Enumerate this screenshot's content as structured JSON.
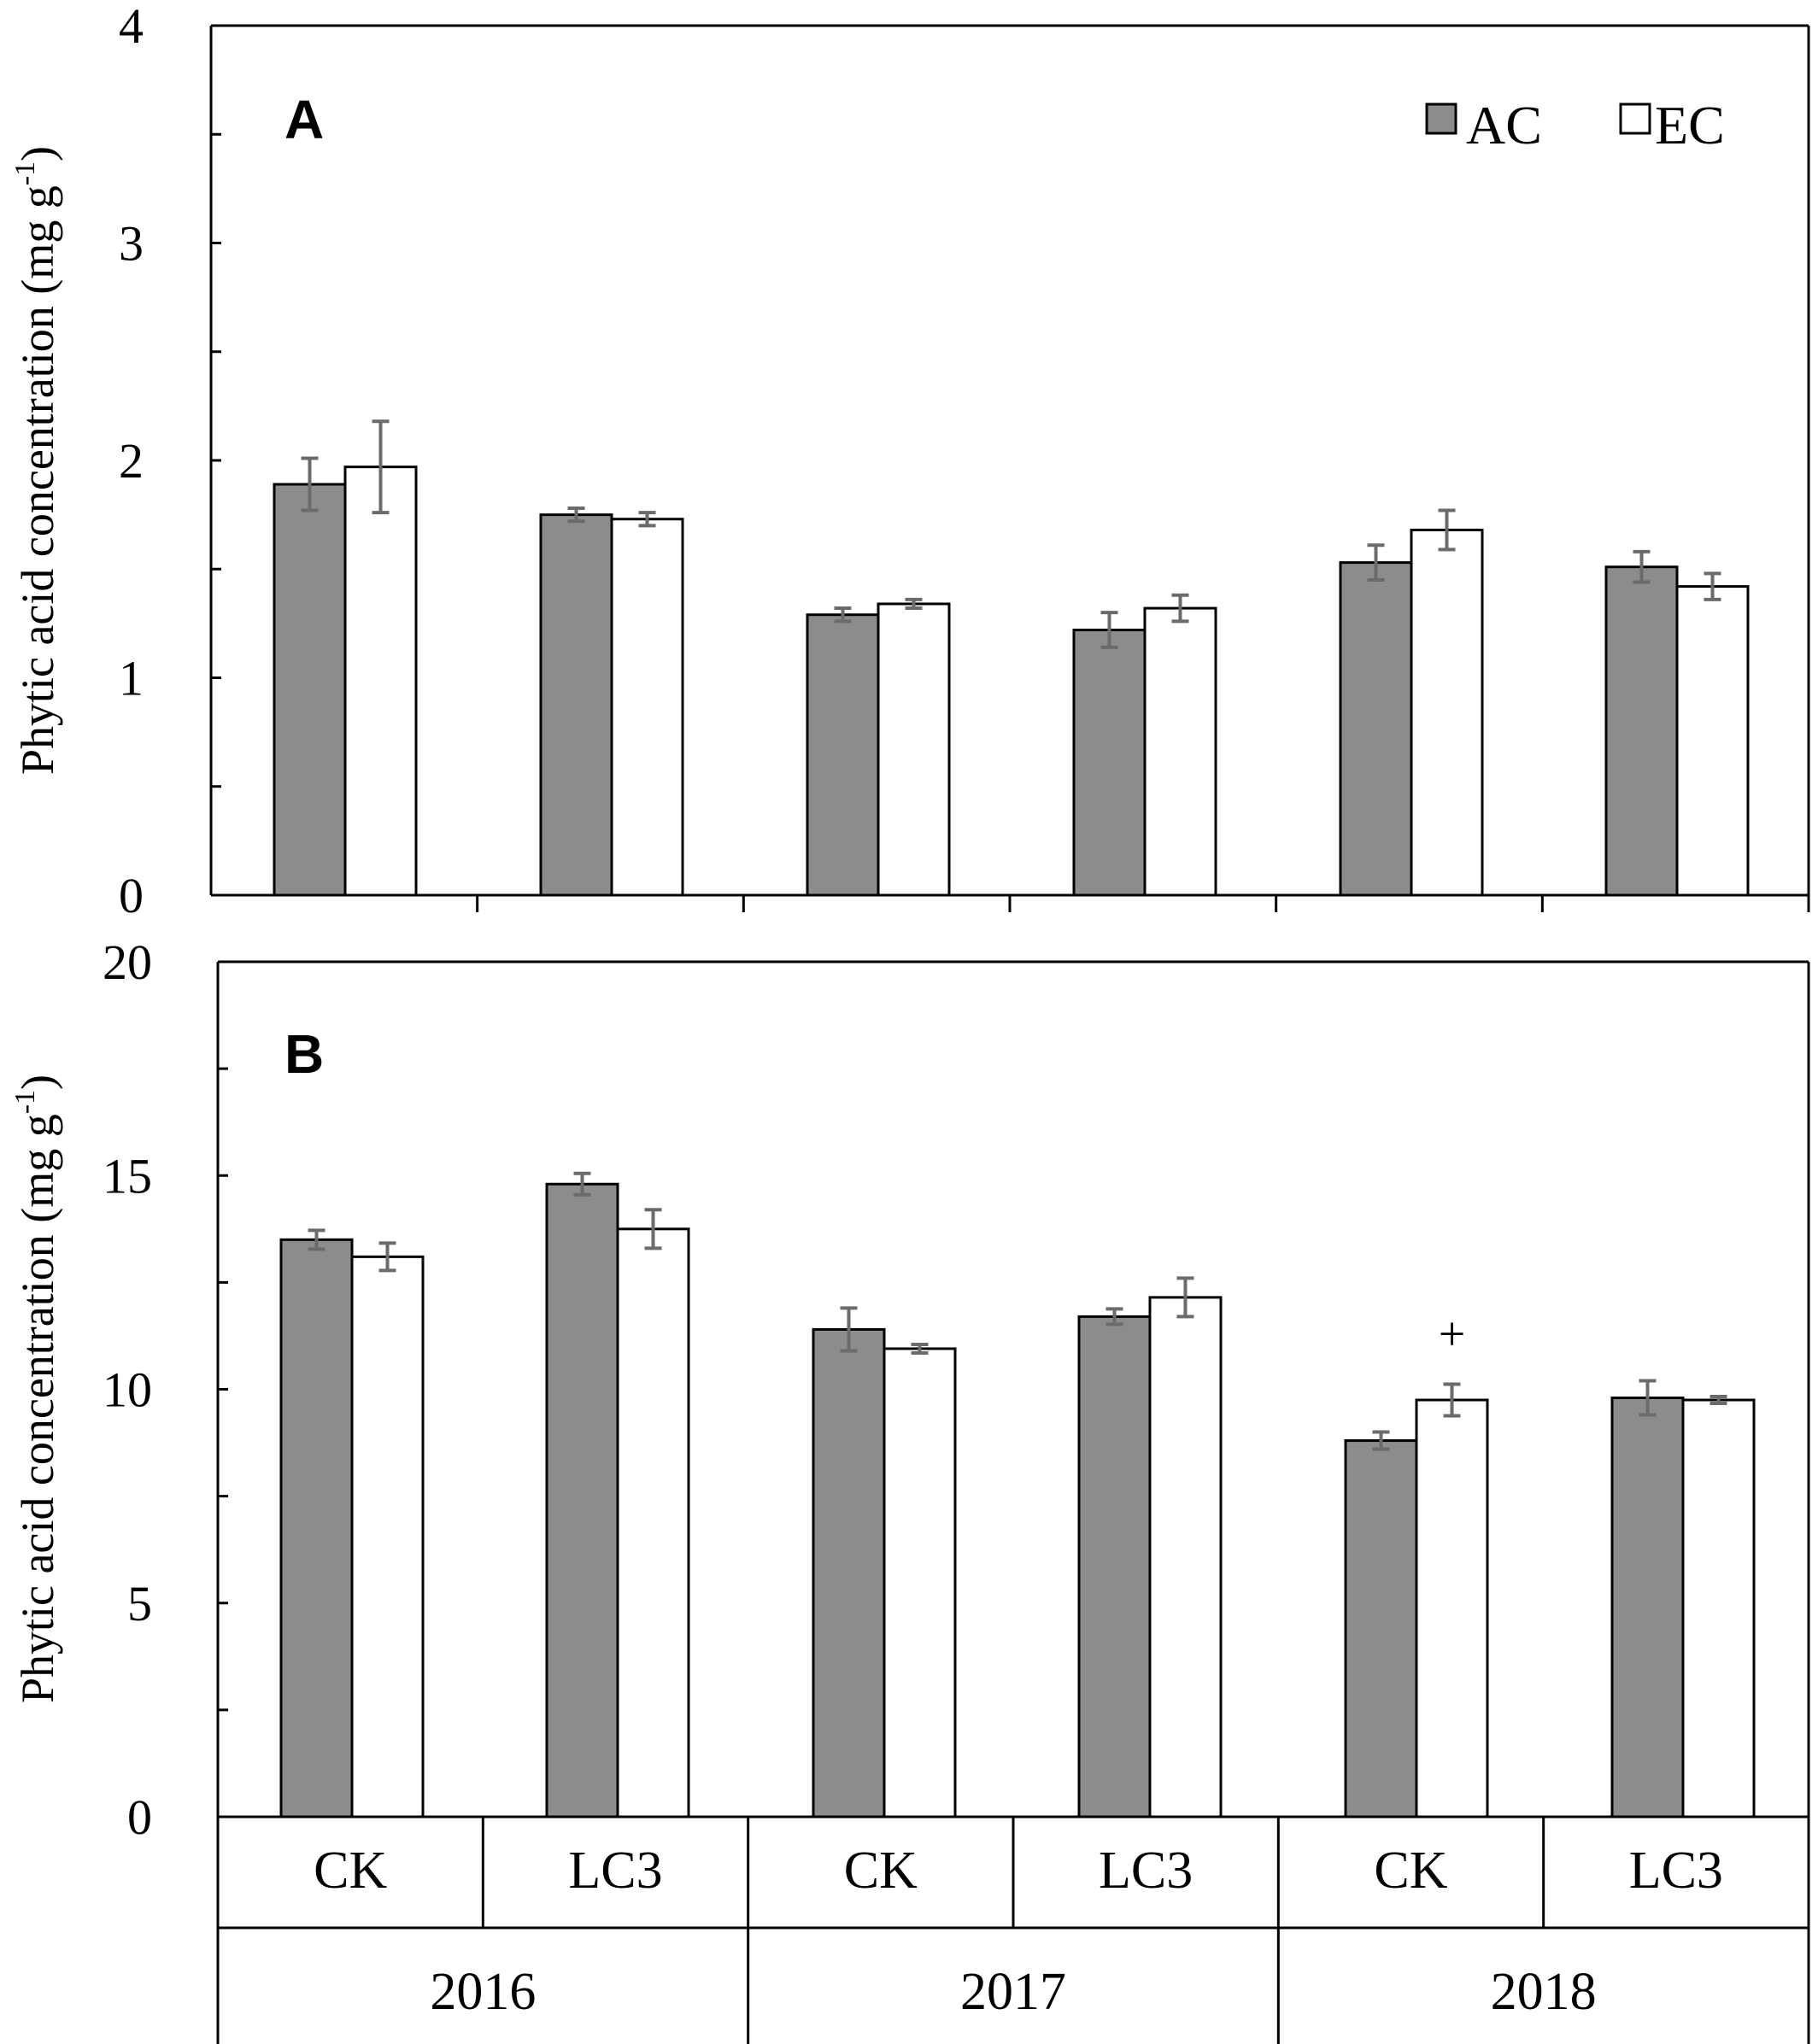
{
  "chart_data": [
    {
      "panel": "A",
      "type": "bar",
      "ylabel": "Phytic acid concentration (mg g-1)",
      "ylabel_main": "Phytic acid concentration (mg g",
      "ylabel_sup": "-1",
      "ylabel_end": ")",
      "ylim": [
        0,
        4
      ],
      "yticks": [
        "0",
        "1",
        "2",
        "3",
        "4"
      ],
      "categories": [
        "CK",
        "LC3",
        "CK",
        "LC3",
        "CK",
        "LC3"
      ],
      "series": [
        {
          "name": "AC",
          "values": [
            1.89,
            1.75,
            1.29,
            1.22,
            1.53,
            1.51
          ],
          "errors": [
            0.12,
            0.03,
            0.03,
            0.08,
            0.08,
            0.07
          ]
        },
        {
          "name": "EC",
          "values": [
            1.97,
            1.73,
            1.34,
            1.32,
            1.68,
            1.42
          ],
          "errors": [
            0.21,
            0.03,
            0.02,
            0.06,
            0.09,
            0.06
          ]
        }
      ]
    },
    {
      "panel": "B",
      "type": "bar",
      "ylabel": "Phytic acid concentration (mg g-1)",
      "ylabel_main": "Phytic acid concentration (mg g",
      "ylabel_sup": "-1",
      "ylabel_end": ")",
      "ylim": [
        0,
        20
      ],
      "yticks": [
        "0",
        "5",
        "10",
        "15",
        "20"
      ],
      "categories": [
        "CK",
        "LC3",
        "CK",
        "LC3",
        "CK",
        "LC3"
      ],
      "groups": [
        "2016",
        "2017",
        "2018"
      ],
      "annotation": "+",
      "series": [
        {
          "name": "AC",
          "values": [
            13.5,
            14.8,
            11.4,
            11.7,
            8.8,
            9.8
          ],
          "errors": [
            0.22,
            0.25,
            0.5,
            0.18,
            0.2,
            0.4
          ]
        },
        {
          "name": "EC",
          "values": [
            13.1,
            13.75,
            10.95,
            12.15,
            9.75,
            9.75
          ],
          "errors": [
            0.32,
            0.45,
            0.1,
            0.45,
            0.37,
            0.08
          ]
        }
      ]
    }
  ],
  "legend": {
    "ac_label": "AC",
    "ec_label": "EC"
  },
  "colors": {
    "ac_fill": "#8c8c8c",
    "ec_fill": "#ffffff",
    "errorbar": "#6b6b6b"
  }
}
